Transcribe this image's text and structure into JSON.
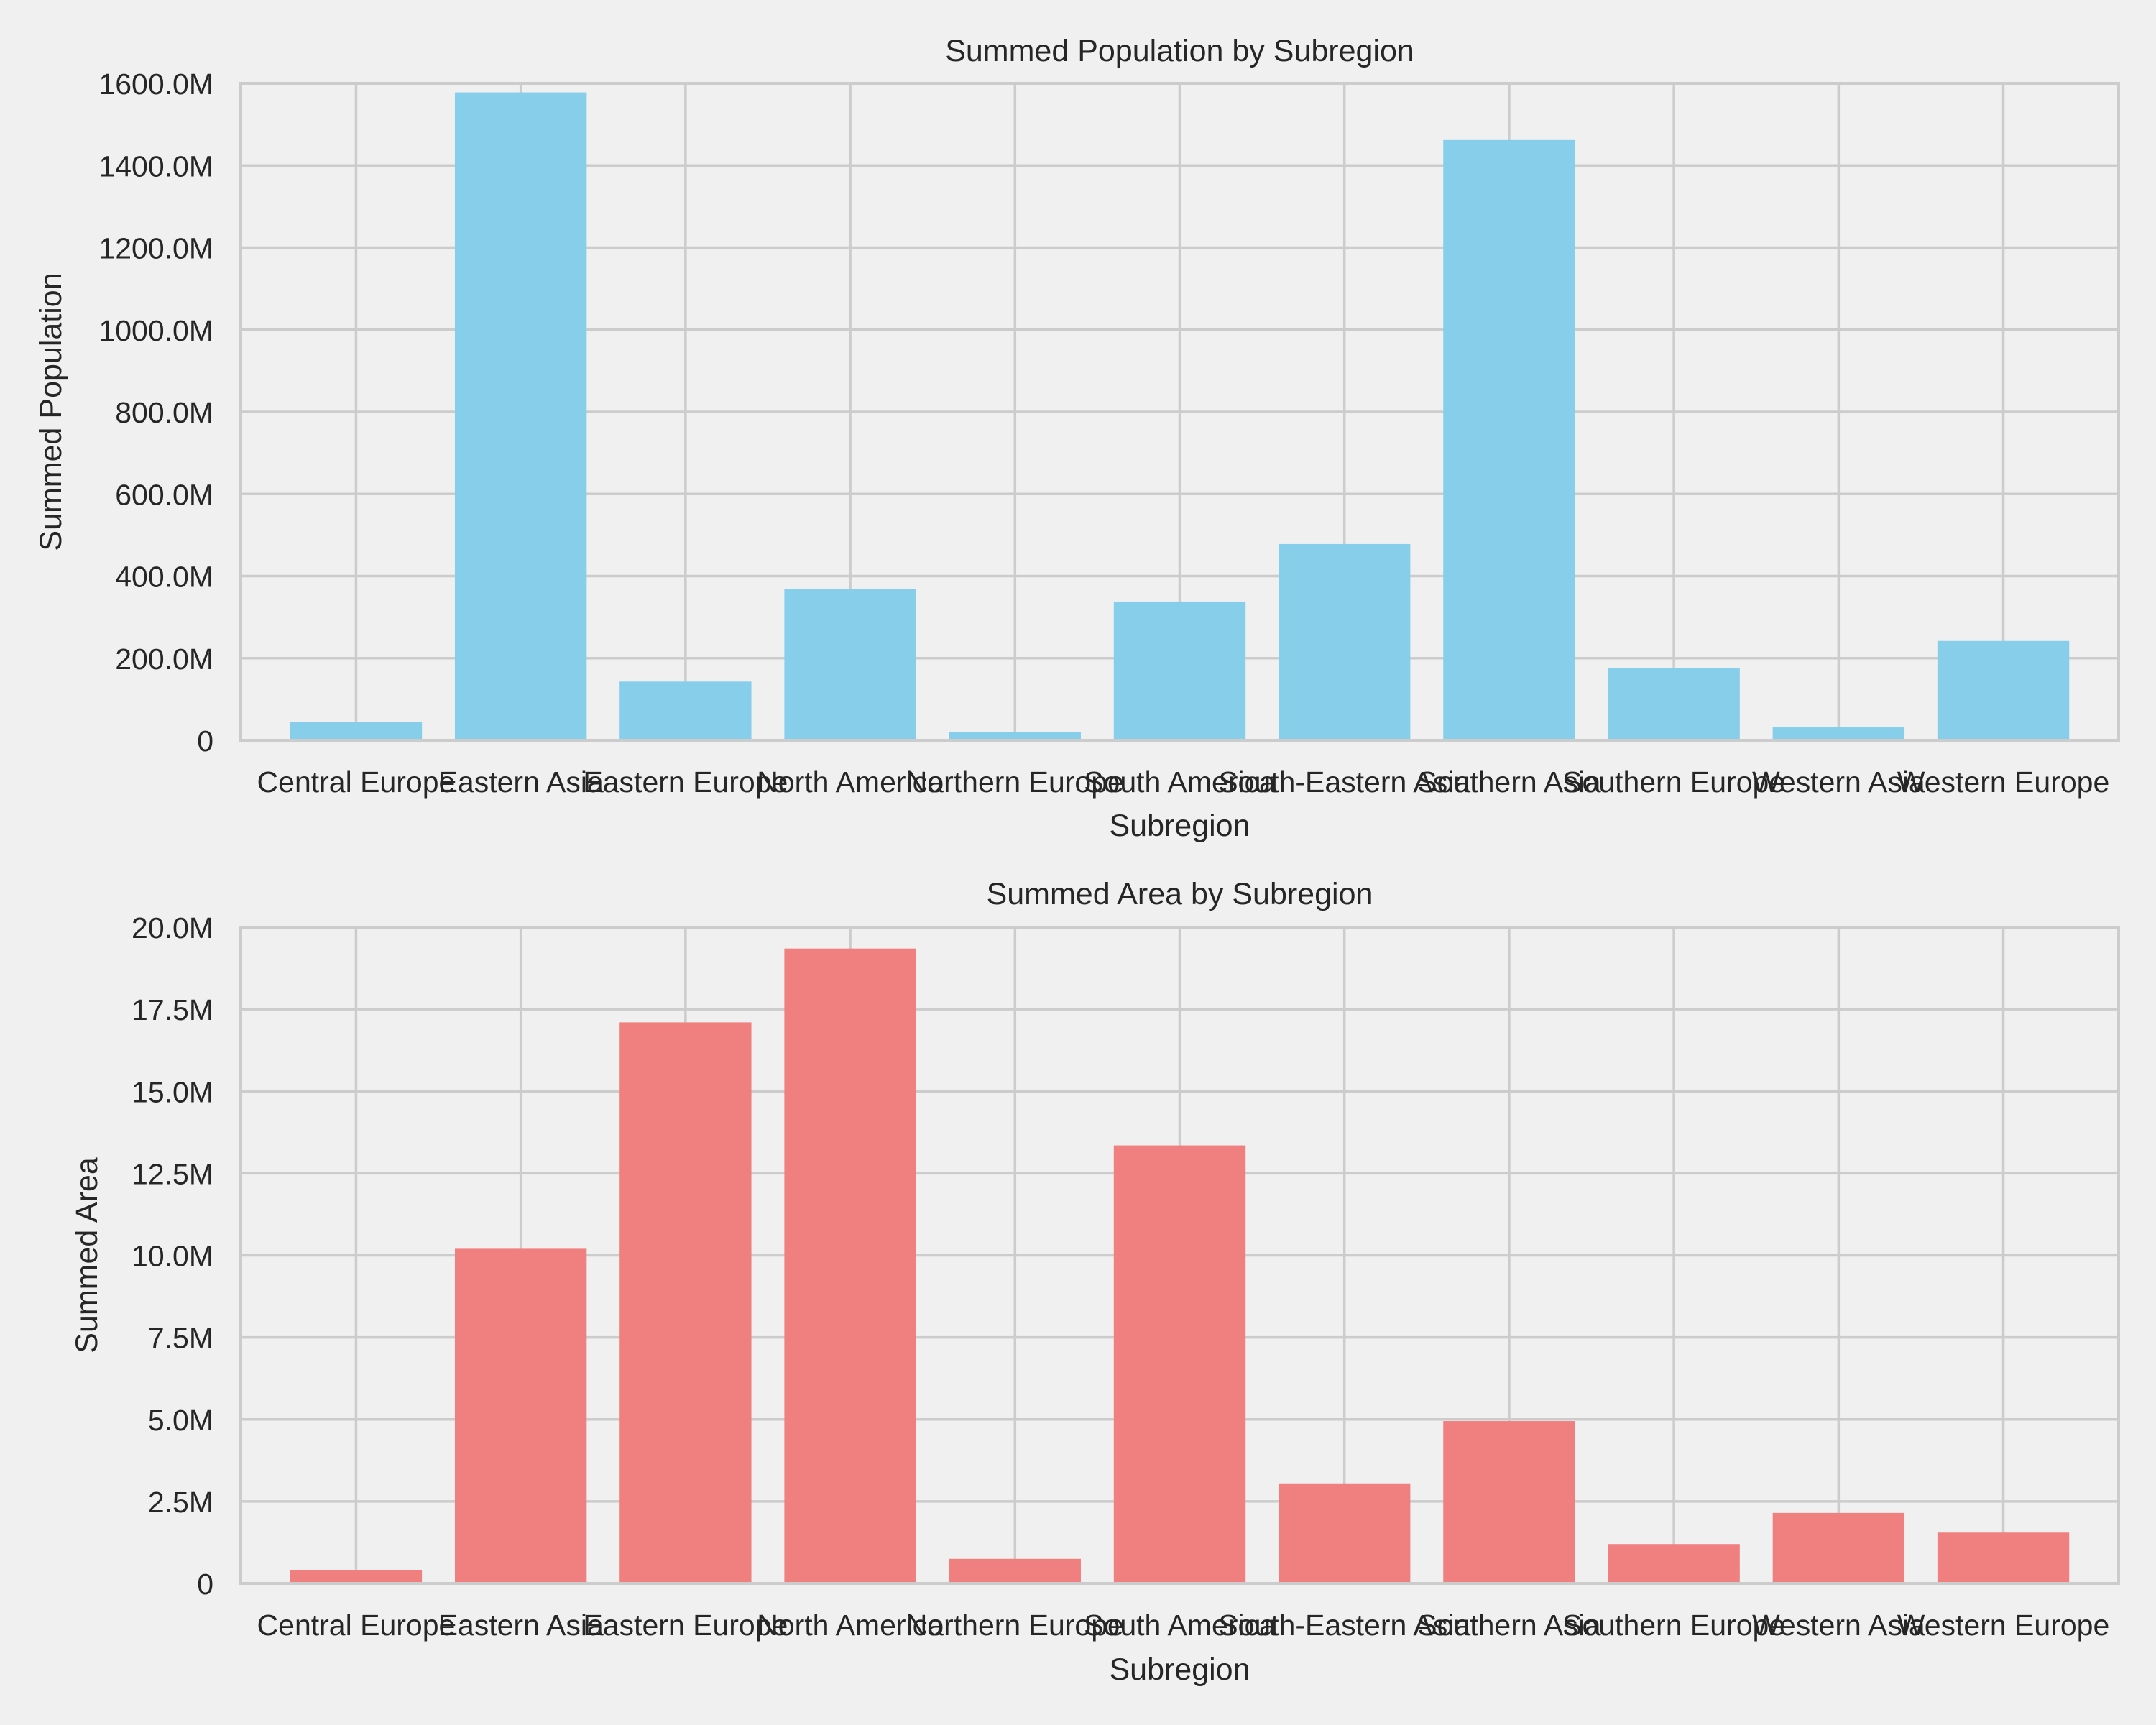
{
  "chart_data": [
    {
      "type": "bar",
      "title": "Summed Population by Subregion",
      "xlabel": "Subregion",
      "ylabel": "Summed Population",
      "categories": [
        "Central Europe",
        "Eastern Asia",
        "Eastern Europe",
        "North America",
        "Northern Europe",
        "South America",
        "South-Eastern Asia",
        "Southern Asia",
        "Southern Europe",
        "Western Asia",
        "Western Europe"
      ],
      "values": [
        45000000,
        1578000000,
        143000000,
        368000000,
        20000000,
        338000000,
        478000000,
        1462000000,
        176000000,
        33000000,
        242000000
      ],
      "ylim": [
        0,
        1600000000
      ],
      "yticks": [
        0,
        200000000,
        400000000,
        600000000,
        800000000,
        1000000000,
        1200000000,
        1400000000,
        1600000000
      ],
      "ytick_labels": [
        "0",
        "200.0M",
        "400.0M",
        "600.0M",
        "800.0M",
        "1000.0M",
        "1200.0M",
        "1400.0M",
        "1600.0M"
      ],
      "bar_color": "#87ceeb",
      "grid": true
    },
    {
      "type": "bar",
      "title": "Summed Area by Subregion",
      "xlabel": "Subregion",
      "ylabel": "Summed Area",
      "categories": [
        "Central Europe",
        "Eastern Asia",
        "Eastern Europe",
        "North America",
        "Northern Europe",
        "South America",
        "South-Eastern Asia",
        "Southern Asia",
        "Southern Europe",
        "Western Asia",
        "Western Europe"
      ],
      "values": [
        400000,
        10200000,
        17100000,
        19350000,
        750000,
        13350000,
        3050000,
        4950000,
        1200000,
        2150000,
        1550000
      ],
      "ylim": [
        0,
        20000000
      ],
      "yticks": [
        0,
        2500000,
        5000000,
        7500000,
        10000000,
        12500000,
        15000000,
        17500000,
        20000000
      ],
      "ytick_labels": [
        "0",
        "2.5M",
        "5.0M",
        "7.5M",
        "10.0M",
        "12.5M",
        "15.0M",
        "17.5M",
        "20.0M"
      ],
      "bar_color": "#f08080",
      "grid": true
    }
  ]
}
